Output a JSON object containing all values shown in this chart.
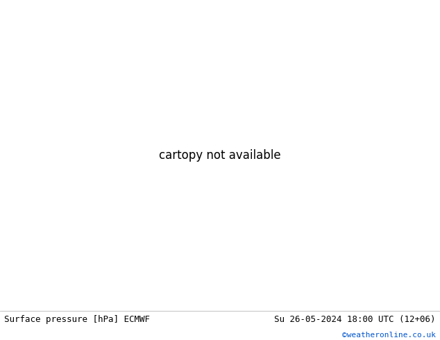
{
  "footer_left": "Surface pressure [hPa] ECMWF",
  "footer_right": "Su 26-05-2024 18:00 UTC (12+06)",
  "footer_credit": "©weatheronline.co.uk",
  "land_color": "#c8f0a0",
  "sea_color": "#d0d0d0",
  "border_color": "#888888",
  "coastline_color": "#888888",
  "red": "#ff0000",
  "black": "#000000",
  "blue": "#0000aa",
  "fig_width": 6.34,
  "fig_height": 4.9,
  "dpi": 100,
  "extent": [
    -11,
    51,
    27,
    61
  ],
  "contour_lw": 1.2,
  "label_fontsize": 7
}
